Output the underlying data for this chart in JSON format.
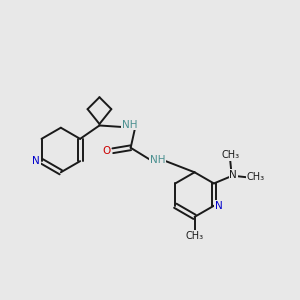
{
  "bg_color": "#e8e8e8",
  "bond_color": "#1a1a1a",
  "N_color": "#0000cc",
  "O_color": "#cc0000",
  "NH_color": "#4a9090",
  "NMe_color": "#1a1a1a",
  "bond_width": 1.4,
  "dbo": 0.008,
  "figsize": [
    3.0,
    3.0
  ],
  "dpi": 100,
  "xlim": [
    0,
    1
  ],
  "ylim": [
    0,
    1
  ]
}
